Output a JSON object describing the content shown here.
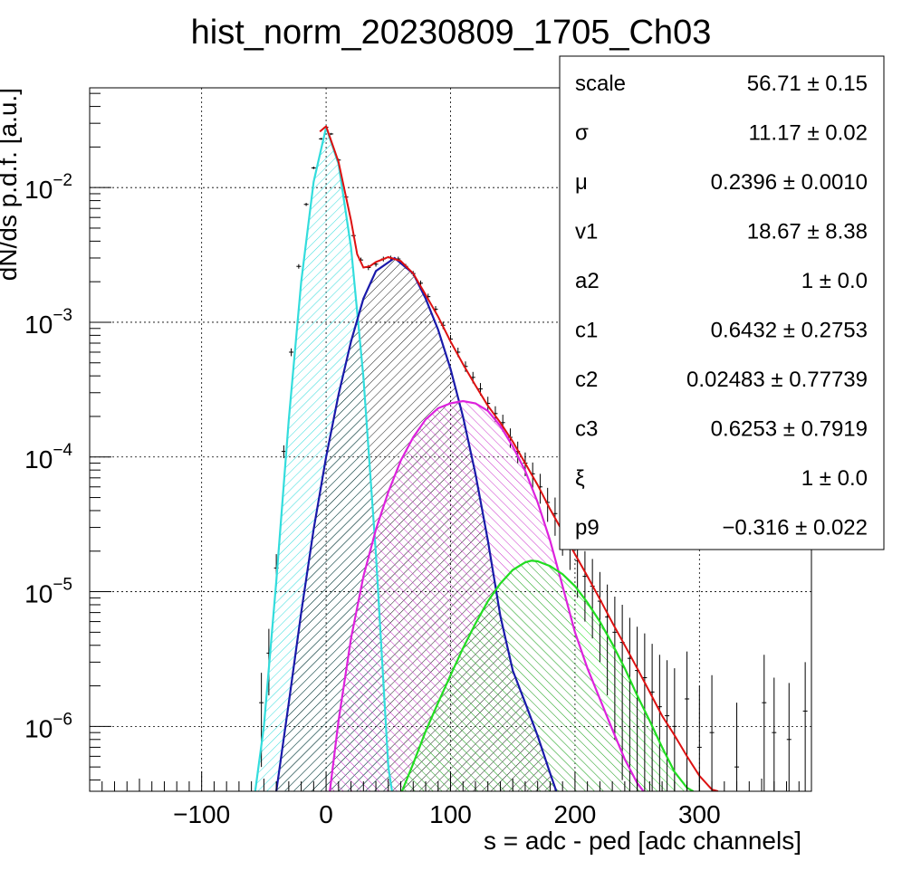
{
  "chart_data": {
    "type": "line",
    "title": "hist_norm_20230809_1705_Ch03",
    "xlabel": "s = adc - ped [adc channels]",
    "ylabel": "dN/ds p.d.f. [a.u.]",
    "xlim": [
      -190,
      390
    ],
    "ylim": [
      3.3e-07,
      0.055
    ],
    "yscale": "log",
    "grid": true,
    "xticks": [
      -100,
      0,
      100,
      200,
      300
    ],
    "xtick_labels": [
      "−100",
      "0",
      "100",
      "200",
      "300"
    ],
    "yticks": [
      1e-06,
      1e-05,
      0.0001,
      0.001,
      0.01
    ],
    "ytick_labels": [
      {
        "base": "10",
        "exp": "−6"
      },
      {
        "base": "10",
        "exp": "−5"
      },
      {
        "base": "10",
        "exp": "−4"
      },
      {
        "base": "10",
        "exp": "−3"
      },
      {
        "base": "10",
        "exp": "−2"
      }
    ],
    "series": [
      {
        "role": "component-0",
        "color": "#33dddd",
        "hatch": "cyan-hatch",
        "x": [
          -57,
          -50,
          -40,
          -30,
          -20,
          -10,
          0,
          10,
          20,
          30,
          40,
          50,
          53
        ],
        "y": [
          3.3e-07,
          1e-06,
          1.2e-05,
          0.00019,
          0.002,
          0.011,
          0.028,
          0.015,
          0.0036,
          0.00039,
          1.9e-05,
          5e-07,
          3.3e-07
        ]
      },
      {
        "role": "component-1",
        "color": "#1a1aaa",
        "hatch": "black-hatch",
        "x": [
          -40,
          -30,
          -20,
          -10,
          0,
          10,
          20,
          30,
          40,
          55,
          70,
          80,
          90,
          100,
          110,
          120,
          130,
          140,
          150,
          160,
          170,
          180,
          185
        ],
        "y": [
          3.3e-07,
          1.5e-06,
          7e-06,
          2.9e-05,
          0.0001,
          0.00029,
          0.00072,
          0.0015,
          0.0024,
          0.003,
          0.0023,
          0.0015,
          0.00088,
          0.00045,
          0.0002,
          7.5e-05,
          2.4e-05,
          6.6e-06,
          2.6e-06,
          1.5e-06,
          8.5e-07,
          4.5e-07,
          3.3e-07
        ]
      },
      {
        "role": "component-2",
        "color": "#dd22dd",
        "hatch": "magenta-hatch",
        "x": [
          3,
          10,
          20,
          30,
          40,
          50,
          60,
          70,
          80,
          90,
          100,
          110,
          120,
          130,
          140,
          150,
          160,
          170,
          180,
          190,
          200,
          210,
          220,
          230,
          240,
          250,
          255
        ],
        "y": [
          3.3e-07,
          1.1e-06,
          4.5e-06,
          1.3e-05,
          2.9e-05,
          5.5e-05,
          9.4e-05,
          0.00014,
          0.00019,
          0.00023,
          0.00025,
          0.00026,
          0.00025,
          0.00022,
          0.00017,
          0.00012,
          7.9e-05,
          4.6e-05,
          2.4e-05,
          1.1e-05,
          5e-06,
          2.7e-06,
          1.6e-06,
          9.5e-07,
          5.7e-07,
          3.8e-07,
          3.3e-07
        ]
      },
      {
        "role": "component-3",
        "color": "#22dd22",
        "hatch": "green-hatch",
        "x": [
          61,
          70,
          80,
          90,
          100,
          110,
          120,
          130,
          140,
          150,
          160,
          165,
          170,
          180,
          190,
          200,
          210,
          220,
          230,
          240,
          250,
          260,
          270,
          280,
          290,
          295
        ],
        "y": [
          3.3e-07,
          5.3e-07,
          9.2e-07,
          1.5e-06,
          2.4e-06,
          3.8e-06,
          5.8e-06,
          8.5e-06,
          1.15e-05,
          1.45e-05,
          1.65e-05,
          1.7e-05,
          1.68e-05,
          1.55e-05,
          1.35e-05,
          1.1e-05,
          8.3e-06,
          6e-06,
          4.1e-06,
          2.7e-06,
          1.7e-06,
          1.1e-06,
          7e-07,
          4.6e-07,
          3.5e-07,
          3.3e-07
        ]
      },
      {
        "role": "total-fit",
        "color": "#dd1111",
        "x": [
          -5,
          0,
          10,
          20,
          25,
          30,
          35,
          40,
          50,
          60,
          70,
          80,
          90,
          100,
          110,
          120,
          130,
          140,
          150,
          160,
          170,
          180,
          190,
          200,
          210,
          220,
          230,
          240,
          250,
          260,
          270,
          280,
          290,
          300,
          310,
          315
        ],
        "y": [
          0.026,
          0.0285,
          0.0155,
          0.0057,
          0.0032,
          0.00255,
          0.0026,
          0.0028,
          0.00305,
          0.00285,
          0.0023,
          0.0016,
          0.0011,
          0.00072,
          0.00049,
          0.00034,
          0.00024,
          0.00018,
          0.00013,
          9e-05,
          6.2e-05,
          4.1e-05,
          2.8e-05,
          1.9e-05,
          1.3e-05,
          8.8e-06,
          5.9e-06,
          4e-06,
          2.7e-06,
          1.8e-06,
          1.2e-06,
          8.6e-07,
          6e-07,
          4.3e-07,
          3.4e-07,
          3.3e-07
        ]
      }
    ],
    "data_points": {
      "color": "#000000",
      "x": [
        -52,
        -46,
        -40,
        -34,
        -28,
        -22,
        -16,
        -10,
        -4,
        0,
        4,
        10,
        16,
        22,
        28,
        34,
        40,
        46,
        52,
        58,
        64,
        70,
        76,
        82,
        88,
        94,
        100,
        106,
        112,
        118,
        124,
        130,
        136,
        142,
        148,
        154,
        160,
        166,
        172,
        178,
        184,
        190,
        196,
        202,
        208,
        214,
        220,
        226,
        232,
        238,
        244,
        250,
        256,
        262,
        268,
        274,
        280,
        290,
        300,
        310,
        330,
        352,
        360,
        372,
        385
      ],
      "y": [
        1.5e-06,
        3.5e-06,
        1.5e-05,
        0.00011,
        0.0006,
        0.0026,
        0.0075,
        0.014,
        0.023,
        0.028,
        0.025,
        0.016,
        0.0085,
        0.0044,
        0.0029,
        0.00255,
        0.0027,
        0.00295,
        0.003,
        0.00295,
        0.0026,
        0.0023,
        0.00195,
        0.00155,
        0.00125,
        0.00095,
        0.00075,
        0.0006,
        0.00047,
        0.00039,
        0.00032,
        0.00025,
        0.00021,
        0.00018,
        0.00014,
        0.00011,
        9e-05,
        7.5e-05,
        6e-05,
        4.6e-05,
        3.8e-05,
        2.9e-05,
        2.4e-05,
        1.7e-05,
        1.3e-05,
        1.1e-05,
        8.5e-06,
        6.5e-06,
        5e-06,
        4.2e-06,
        3.2e-06,
        2.6e-06,
        2.3e-06,
        1.8e-06,
        1.4e-06,
        1.2e-06,
        1e-06,
        1.6e-06,
        7e-07,
        9e-07,
        5e-07,
        1.5e-06,
        9e-07,
        8e-07,
        1.3e-06
      ],
      "err": [
        1e-06,
        1.8e-06,
        4e-06,
        1.2e-05,
        4e-05,
        0.0001,
        0.0002,
        0.0003,
        0.0004,
        0.00045,
        0.00045,
        0.00035,
        0.00025,
        0.00016,
        0.00012,
        0.00011,
        0.00011,
        0.00012,
        0.00012,
        0.00012,
        0.00011,
        0.0001,
        9e-05,
        8e-05,
        7e-05,
        6e-05,
        5.4e-05,
        4.8e-05,
        4.2e-05,
        3.8e-05,
        3.4e-05,
        3e-05,
        2.8e-05,
        2.6e-05,
        2.3e-05,
        2e-05,
        1.8e-05,
        1.6e-05,
        1.5e-05,
        1.3e-05,
        1.2e-05,
        1.05e-05,
        9.5e-06,
        8e-06,
        7e-06,
        6.5e-06,
        5.5e-06,
        4.8e-06,
        4.2e-06,
        3.8e-06,
        3.2e-06,
        2.9e-06,
        2.6e-06,
        2.3e-06,
        2e-06,
        1.9e-06,
        1.7e-06,
        2e-06,
        1.3e-06,
        1.5e-06,
        1e-06,
        1.9e-06,
        1.4e-06,
        1.3e-06,
        1.7e-06
      ]
    },
    "stats_box": {
      "rows": [
        {
          "label": "scale",
          "value": "56.71 ± 0.15"
        },
        {
          "label": "σ",
          "value": "11.17 ± 0.02"
        },
        {
          "label": "μ",
          "value": "0.2396 ± 0.0010"
        },
        {
          "label": "v1",
          "value": "18.67 ± 8.38"
        },
        {
          "label": "a2",
          "value": "1 ± 0.0"
        },
        {
          "label": "c1",
          "value": "0.6432 ± 0.2753"
        },
        {
          "label": "c2",
          "value": "0.02483 ± 0.77739"
        },
        {
          "label": "c3",
          "value": "0.6253 ± 0.7919"
        },
        {
          "label": "ξ",
          "value": "1 ± 0.0"
        },
        {
          "label": "p9",
          "value": "−0.316 ± 0.022"
        }
      ]
    }
  }
}
